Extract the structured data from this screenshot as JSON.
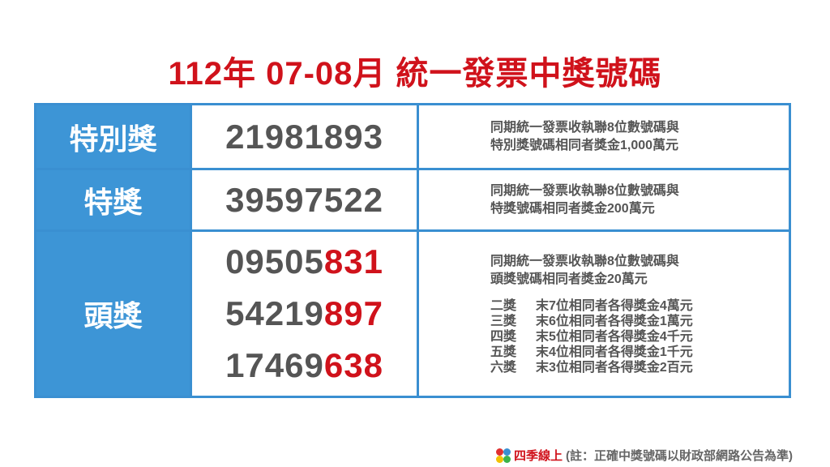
{
  "title": "112年 07-08月 統一發票中獎號碼",
  "rows": [
    {
      "label": "特別獎",
      "numbers": [
        {
          "prefix": "21981893",
          "suffix": ""
        }
      ],
      "desc": [
        "同期統一發票收執聯8位數號碼與",
        "特別獎號碼相同者獎金1,000萬元"
      ]
    },
    {
      "label": "特獎",
      "numbers": [
        {
          "prefix": "39597522",
          "suffix": ""
        }
      ],
      "desc": [
        "同期統一發票收執聯8位數號碼與",
        "特獎號碼相同者獎金200萬元"
      ]
    },
    {
      "label": "頭獎",
      "numbers": [
        {
          "prefix": "09505",
          "suffix": "831"
        },
        {
          "prefix": "54219",
          "suffix": "897"
        },
        {
          "prefix": "17469",
          "suffix": "638"
        }
      ],
      "desc": [
        "同期統一發票收執聯8位數號碼與",
        "頭獎號碼相同者獎金20萬元"
      ],
      "sub": [
        {
          "name": "二獎",
          "text": "末7位相同者各得獎金4萬元"
        },
        {
          "name": "三獎",
          "text": "末6位相同者各得獎金1萬元"
        },
        {
          "name": "四獎",
          "text": "末5位相同者各得獎金4千元"
        },
        {
          "name": "五獎",
          "text": "末4位相同者各得獎金1千元"
        },
        {
          "name": "六獎",
          "text": "末3位相同者各得獎金2百元"
        }
      ]
    }
  ],
  "footer": {
    "brand": "四季線上",
    "note": "(註：正確中獎號碼以財政部網路公告為準)"
  },
  "colors": {
    "title": "#d0121b",
    "accent": "#3d95d6",
    "highlight": "#d0121b"
  }
}
